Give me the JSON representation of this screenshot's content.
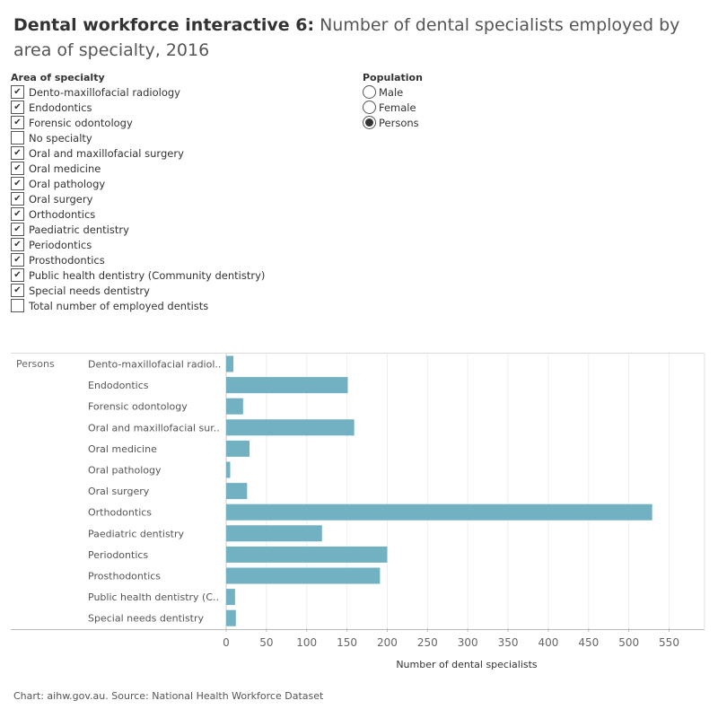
{
  "title": {
    "bold": "Dental workforce interactive 6:",
    "rest": " Number of dental specialists employed by area of specialty, 2016"
  },
  "specialty_filter": {
    "label": "Area of specialty",
    "items": [
      {
        "label": "Dento-maxillofacial radiology",
        "checked": true
      },
      {
        "label": "Endodontics",
        "checked": true
      },
      {
        "label": "Forensic odontology",
        "checked": true
      },
      {
        "label": "No specialty",
        "checked": false
      },
      {
        "label": "Oral and maxillofacial surgery",
        "checked": true
      },
      {
        "label": "Oral medicine",
        "checked": true
      },
      {
        "label": "Oral pathology",
        "checked": true
      },
      {
        "label": "Oral surgery",
        "checked": true
      },
      {
        "label": "Orthodontics",
        "checked": true
      },
      {
        "label": "Paediatric dentistry",
        "checked": true
      },
      {
        "label": "Periodontics",
        "checked": true
      },
      {
        "label": "Prosthodontics",
        "checked": true
      },
      {
        "label": "Public health dentistry (Community dentistry)",
        "checked": true
      },
      {
        "label": "Special needs dentistry",
        "checked": true
      },
      {
        "label": "Total number of employed dentists",
        "checked": false
      }
    ]
  },
  "population_filter": {
    "label": "Population",
    "options": [
      {
        "label": "Male",
        "selected": false
      },
      {
        "label": "Female",
        "selected": false
      },
      {
        "label": "Persons",
        "selected": true
      }
    ]
  },
  "chart_data": {
    "type": "bar",
    "orientation": "horizontal",
    "row_header": "Persons",
    "categories": [
      "Dento-maxillofacial radiol..",
      "Endodontics",
      "Forensic odontology",
      "Oral and maxillofacial sur..",
      "Oral medicine",
      "Oral pathology",
      "Oral surgery",
      "Orthodontics",
      "Paediatric dentistry",
      "Periodontics",
      "Prosthodontics",
      "Public health dentistry (C..",
      "Special needs dentistry"
    ],
    "values": [
      9,
      151,
      21,
      159,
      29,
      5,
      26,
      529,
      119,
      200,
      191,
      11,
      12
    ],
    "xlabel": "Number of dental specialists",
    "xlim": [
      0,
      555
    ],
    "xticks": [
      0,
      50,
      100,
      150,
      200,
      250,
      300,
      350,
      400,
      450,
      500,
      550
    ],
    "grid": true,
    "bar_color": "#71b1c2"
  },
  "source": "Chart: aihw.gov.au. Source: National Health Workforce Dataset"
}
